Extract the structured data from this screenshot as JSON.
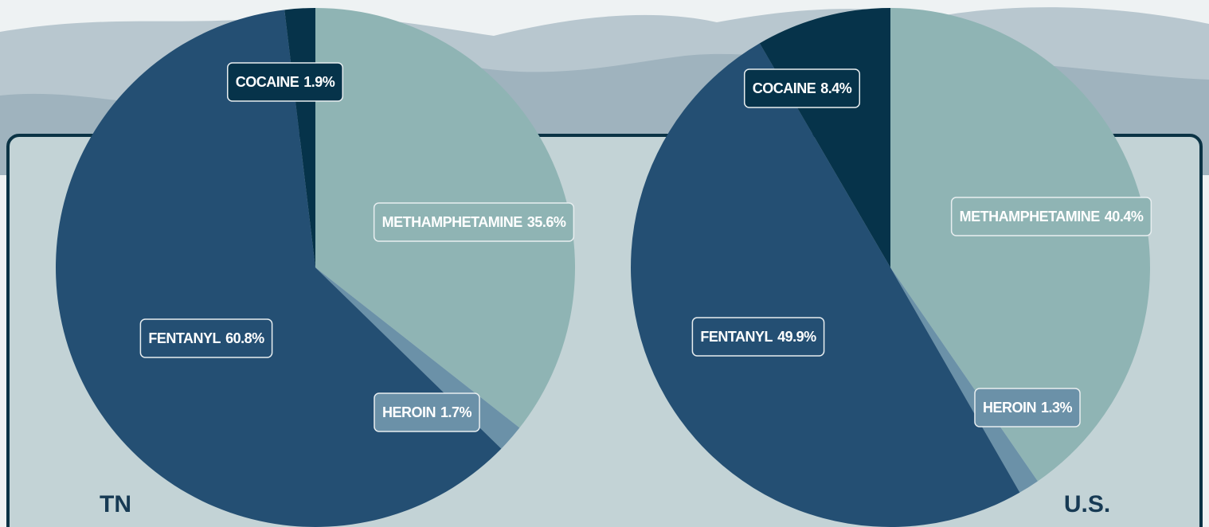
{
  "chart_data": [
    {
      "type": "pie",
      "title": "TN",
      "categories": [
        "METHAMPHETAMINE",
        "HEROIN",
        "FENTANYL",
        "COCAINE"
      ],
      "values": [
        35.6,
        1.7,
        60.8,
        1.9
      ],
      "value_labels": [
        "35.6%",
        "1.7%",
        "60.8%",
        "1.9%"
      ],
      "colors": [
        "#8fb4b4",
        "#6b91a8",
        "#244f73",
        "#06334a"
      ]
    },
    {
      "type": "pie",
      "title": "U.S.",
      "categories": [
        "METHAMPHETAMINE",
        "HEROIN",
        "FENTANYL",
        "COCAINE"
      ],
      "values": [
        40.4,
        1.3,
        49.9,
        8.4
      ],
      "value_labels": [
        "40.4%",
        "1.3%",
        "49.9%",
        "8.4%"
      ],
      "colors": [
        "#8fb4b4",
        "#6b91a8",
        "#244f73",
        "#06334a"
      ]
    }
  ]
}
